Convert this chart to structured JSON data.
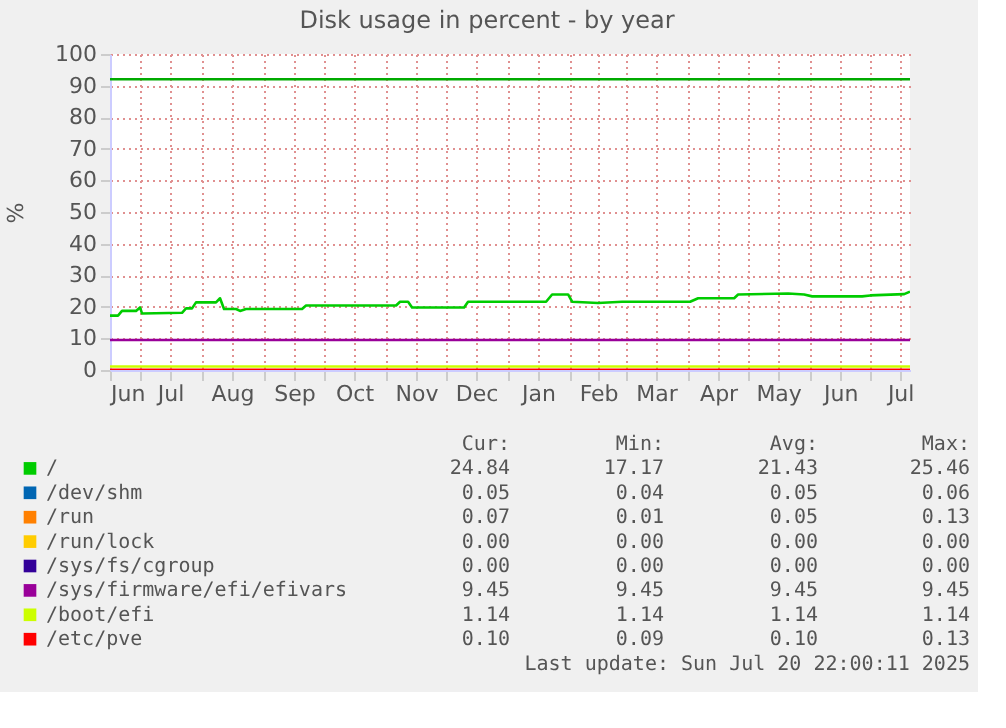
{
  "chart_data": {
    "type": "line",
    "title": "Disk usage in percent - by year",
    "ylabel": "%",
    "xlim": [
      "2024-06-16",
      "2025-07-20T22:00"
    ],
    "xticks": [
      {
        "value": "2024-07-01",
        "label": null
      },
      {
        "value": "2024-08-01",
        "label": null
      },
      {
        "value": "2024-09-01",
        "label": null
      },
      {
        "value": "2024-10-01",
        "label": null
      },
      {
        "value": "2024-11-01",
        "label": null
      },
      {
        "value": "2024-12-01",
        "label": null
      },
      {
        "value": "2025-01-01",
        "label": null
      },
      {
        "value": "2025-02-01",
        "label": null
      },
      {
        "value": "2025-03-01",
        "label": null
      },
      {
        "value": "2025-04-01",
        "label": null
      },
      {
        "value": "2025-05-01",
        "label": null
      },
      {
        "value": "2025-06-01",
        "label": null
      },
      {
        "value": "2025-07-01",
        "label": null
      },
      {
        "value": "2024-06-16",
        "label": "Jun"
      },
      {
        "value": "2024-07-16",
        "label": "Jul"
      },
      {
        "value": "2024-08-16",
        "label": "Aug"
      },
      {
        "value": "2024-09-16",
        "label": "Sep"
      },
      {
        "value": "2024-10-16",
        "label": "Oct"
      },
      {
        "value": "2024-11-16",
        "label": "Nov"
      },
      {
        "value": "2024-12-16",
        "label": "Dec"
      },
      {
        "value": "2025-01-16",
        "label": "Jan"
      },
      {
        "value": "2025-02-15",
        "label": "Feb"
      },
      {
        "value": "2025-03-16",
        "label": "Mar"
      },
      {
        "value": "2025-04-16",
        "label": "Apr"
      },
      {
        "value": "2025-05-16",
        "label": "May"
      },
      {
        "value": "2025-06-16",
        "label": "Jun"
      },
      {
        "value": "2025-07-16",
        "label": "Jul"
      }
    ],
    "ylim": [
      0,
      100
    ],
    "yticks": [
      0,
      10,
      20,
      30,
      40,
      50,
      60,
      70,
      80,
      90,
      100
    ],
    "grid": true,
    "legend": "bottom",
    "marker": "none",
    "line_style": "solid",
    "series": [
      {
        "name": "/",
        "color": "#00cc00",
        "x": [
          "2024-06-16",
          "2024-06-20",
          "2024-06-22",
          "2024-06-29",
          "2024-07-01",
          "2024-07-02",
          "2024-07-22",
          "2024-07-24",
          "2024-07-27",
          "2024-07-29",
          "2024-08-08",
          "2024-08-10",
          "2024-08-12",
          "2024-08-18",
          "2024-08-20",
          "2024-08-23",
          "2024-09-20",
          "2024-09-22",
          "2024-11-06",
          "2024-11-08",
          "2024-11-12",
          "2024-11-14",
          "2024-12-10",
          "2024-12-12",
          "2025-01-20",
          "2025-01-23",
          "2025-01-31",
          "2025-02-02",
          "2025-02-15",
          "2025-02-27",
          "2025-04-02",
          "2025-04-06",
          "2025-04-24",
          "2025-04-26",
          "2025-05-21",
          "2025-05-29",
          "2025-06-02",
          "2025-06-27",
          "2025-07-01",
          "2025-07-18",
          "2025-07-20T22:00"
        ],
        "values": [
          17.2,
          17.2,
          18.7,
          18.7,
          19.8,
          17.9,
          18.1,
          19.5,
          19.5,
          21.4,
          21.4,
          22.7,
          19.3,
          19.3,
          18.7,
          19.3,
          19.3,
          20.4,
          20.4,
          21.6,
          21.6,
          19.8,
          19.8,
          21.6,
          21.6,
          23.9,
          23.9,
          21.6,
          21.2,
          21.6,
          21.6,
          22.7,
          22.7,
          23.9,
          24.2,
          23.9,
          23.3,
          23.3,
          23.6,
          24.0,
          24.8
        ]
      },
      {
        "name": "/dev/shm",
        "color": "#0066b3"
      },
      {
        "name": "/run",
        "color": "#ff8000"
      },
      {
        "name": "/run/lock",
        "color": "#ffcc00"
      },
      {
        "name": "/sys/fs/cgroup",
        "color": "#330099"
      },
      {
        "name": "/sys/firmware/efi/efivars",
        "color": "#990099",
        "x": [
          "2024-06-16",
          "2025-07-20T22:00"
        ],
        "values": [
          9.5,
          9.5
        ]
      },
      {
        "name": "/boot/efi",
        "color": "#ccff00",
        "x": [
          "2024-06-16",
          "2025-07-20T22:00"
        ],
        "values": [
          1.1,
          1.1
        ]
      },
      {
        "name": "/etc/pve",
        "color": "#ff0000",
        "x": [
          "2024-06-16",
          "2025-07-20T22:00"
        ],
        "values": [
          0.1,
          0.1
        ]
      }
    ],
    "ref_lines": [
      {
        "axis": "y",
        "value": 92,
        "color": "#00aa00"
      }
    ],
    "annotations": [
      "Cur:",
      "Min:",
      "Avg:",
      "Max:",
      "24.84",
      "17.17",
      "21.43",
      "25.46",
      "0.05",
      "0.04",
      "0.05",
      "0.06",
      "0.07",
      "0.01",
      "0.05",
      "0.13",
      "0.00",
      "0.00",
      "0.00",
      "0.00",
      "0.00",
      "0.00",
      "0.00",
      "0.00",
      "9.45",
      "9.45",
      "9.45",
      "9.45",
      "1.14",
      "1.14",
      "1.14",
      "1.14",
      "0.10",
      "0.09",
      "0.10",
      "0.13",
      "Last update: Sun Jul 20 22:00:11 2025"
    ]
  }
}
